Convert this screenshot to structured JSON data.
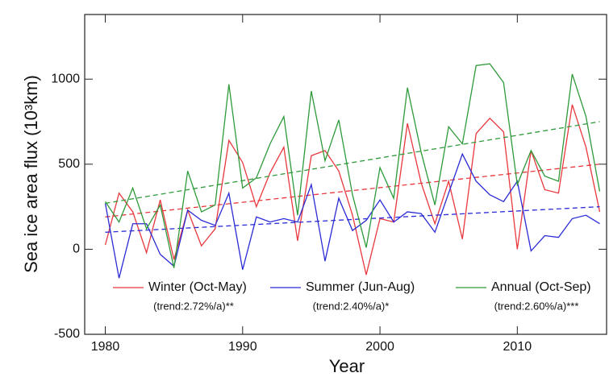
{
  "chart_data": {
    "type": "line",
    "xlabel": "Year",
    "ylabel": "Sea ice area flux (10³km)",
    "x": [
      1980,
      1981,
      1982,
      1983,
      1984,
      1985,
      1986,
      1987,
      1988,
      1989,
      1990,
      1991,
      1992,
      1993,
      1994,
      1995,
      1996,
      1997,
      1998,
      1999,
      2000,
      2001,
      2002,
      2003,
      2004,
      2005,
      2006,
      2007,
      2008,
      2009,
      2010,
      2011,
      2012,
      2013,
      2014,
      2015,
      2016
    ],
    "trend_x": [
      1980,
      2016
    ],
    "series": [
      {
        "name": "Winter (Oct-May)",
        "color": "#e8383d",
        "trend_label": "(trend:2.72%/a)**",
        "trend": [
          190,
          500
        ],
        "values": [
          25,
          330,
          220,
          -20,
          290,
          -60,
          230,
          20,
          120,
          640,
          510,
          250,
          450,
          600,
          50,
          550,
          580,
          460,
          200,
          -150,
          180,
          160,
          740,
          390,
          150,
          400,
          60,
          680,
          770,
          690,
          0,
          580,
          350,
          330,
          850,
          600,
          220
        ]
      },
      {
        "name": "Summer (Jun-Aug)",
        "color": "#2b2bd6",
        "trend_label": "(trend:2.40%/a)*",
        "trend": [
          100,
          250
        ],
        "values": [
          270,
          -170,
          150,
          150,
          -30,
          -100,
          230,
          170,
          140,
          330,
          -120,
          190,
          160,
          180,
          160,
          380,
          -70,
          300,
          110,
          170,
          290,
          160,
          220,
          210,
          100,
          330,
          560,
          400,
          320,
          280,
          400,
          -10,
          80,
          70,
          180,
          200,
          150
        ]
      },
      {
        "name": "Annual (Oct-Sep)",
        "color": "#2e9a3a",
        "trend_label": "(trend:2.60%/a)***",
        "trend": [
          270,
          750
        ],
        "values": [
          280,
          160,
          360,
          120,
          260,
          -110,
          460,
          220,
          260,
          970,
          360,
          420,
          620,
          780,
          200,
          930,
          520,
          760,
          320,
          10,
          480,
          300,
          950,
          570,
          260,
          720,
          620,
          1080,
          1090,
          980,
          380,
          580,
          430,
          400,
          1030,
          780,
          340
        ]
      }
    ],
    "xlim": [
      1978.5,
      2016.5
    ],
    "xticks": [
      1980,
      1990,
      2000,
      2010
    ],
    "ylim": [
      -500,
      1380
    ],
    "yticks": [
      -500,
      0,
      500,
      1000
    ]
  }
}
